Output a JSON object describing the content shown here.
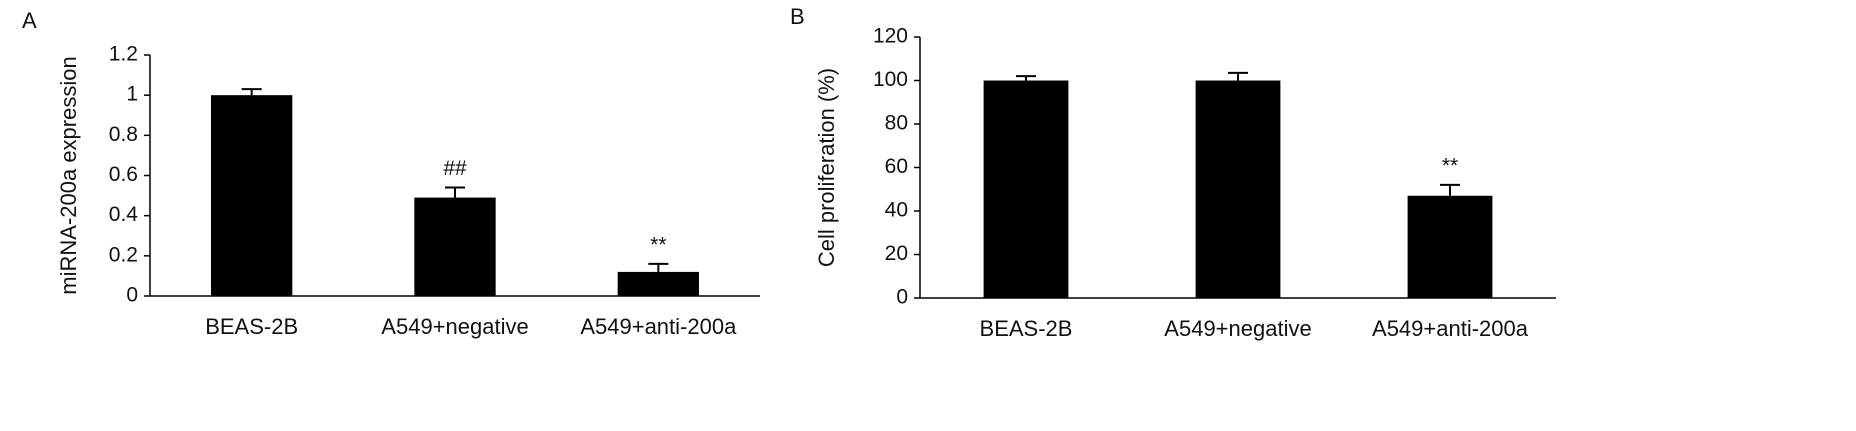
{
  "chart_data": [
    {
      "type": "bar",
      "panel": "A",
      "ylabel": "miRNA-200a  expression",
      "categories": [
        "BEAS-2B",
        "A549+negative",
        "A549+anti-200a"
      ],
      "values": [
        1.0,
        0.49,
        0.12
      ],
      "errors": [
        0.03,
        0.05,
        0.04
      ],
      "significance": [
        null,
        "##",
        "**"
      ],
      "color": "#000000",
      "ylim": [
        0,
        1.2
      ],
      "yticks": [
        0,
        0.2,
        0.4,
        0.6,
        0.8,
        1,
        1.2
      ]
    },
    {
      "type": "bar",
      "panel": "B",
      "ylabel": "Cell proliferation (%)",
      "categories": [
        "BEAS-2B",
        "A549+negative",
        "A549+anti-200a"
      ],
      "values": [
        100,
        100,
        47
      ],
      "errors": [
        2,
        3.5,
        5
      ],
      "significance": [
        null,
        null,
        "**"
      ],
      "color": "#000000",
      "ylim": [
        0,
        120
      ],
      "yticks": [
        0,
        20,
        40,
        60,
        80,
        100,
        120
      ]
    }
  ]
}
